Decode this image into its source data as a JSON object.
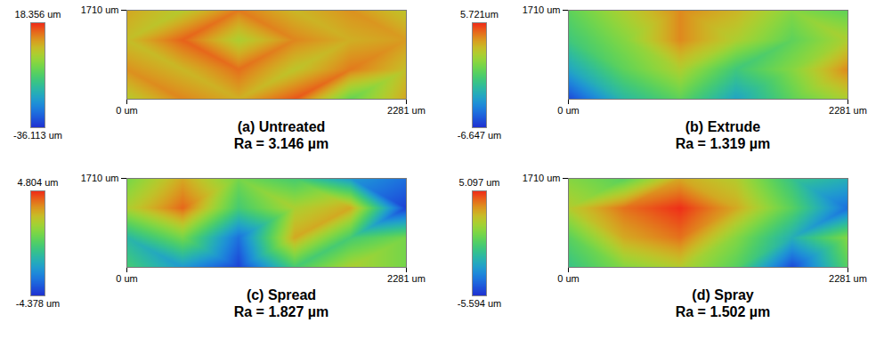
{
  "chart_data": [
    {
      "type": "heatmap",
      "title": "(a) Untreated",
      "subtitle": "Ra = 3.146 µm",
      "x": [
        0,
        456,
        912,
        1369,
        1825,
        2281
      ],
      "y": [
        1710,
        1140,
        570,
        0
      ],
      "z": [
        [
          8,
          3,
          12,
          6,
          10,
          4
        ],
        [
          5,
          14,
          2,
          11,
          7,
          9
        ],
        [
          10,
          6,
          13,
          4,
          12,
          5
        ],
        [
          3,
          11,
          7,
          15,
          -6,
          8
        ]
      ],
      "xlim": [
        0,
        2281
      ],
      "ylim": [
        0,
        1710
      ],
      "xticks": [
        {
          "value": 0,
          "label": "0 um"
        },
        {
          "value": 2281,
          "label": "2281 um"
        }
      ],
      "yticks": [
        {
          "value": 1710,
          "label": "1710 um"
        }
      ],
      "colorbar": {
        "range": [
          -36.113,
          18.356
        ],
        "ticks": [
          {
            "value": 18.356,
            "label": "18.356 um"
          },
          {
            "value": -36.113,
            "label": "-36.113 um"
          }
        ]
      }
    },
    {
      "type": "heatmap",
      "title": "(b) Extrude",
      "subtitle": "Ra = 1.319 µm",
      "x": [
        0,
        456,
        912,
        1369,
        1825,
        2281
      ],
      "y": [
        1710,
        1140,
        570,
        0
      ],
      "z": [
        [
          0,
          2,
          4,
          3,
          1,
          0
        ],
        [
          -1,
          1,
          4,
          2,
          0,
          2
        ],
        [
          -3,
          0,
          2,
          -1,
          1,
          4
        ],
        [
          -6,
          -2,
          0,
          -3,
          0,
          2
        ]
      ],
      "xlim": [
        0,
        2281
      ],
      "ylim": [
        0,
        1710
      ],
      "xticks": [
        {
          "value": 0,
          "label": "0 um"
        },
        {
          "value": 2281,
          "label": "2281 um"
        }
      ],
      "yticks": [
        {
          "value": 1710,
          "label": "1710 um"
        }
      ],
      "colorbar": {
        "range": [
          -6.647,
          5.721
        ],
        "ticks": [
          {
            "value": 5.721,
            "label": "5.721um"
          },
          {
            "value": -6.647,
            "label": "-6.647 um"
          }
        ]
      }
    },
    {
      "type": "heatmap",
      "title": "(c) Spread",
      "subtitle": "Ra = 1.827 µm",
      "x": [
        0,
        456,
        912,
        1369,
        1825,
        2281
      ],
      "y": [
        1710,
        1140,
        570,
        0
      ],
      "z": [
        [
          1,
          3,
          1,
          0,
          -2,
          -3
        ],
        [
          2,
          4,
          0,
          2,
          3,
          -4
        ],
        [
          -1,
          1,
          -3,
          3,
          0,
          1
        ],
        [
          0,
          -2,
          -4,
          0,
          2,
          1
        ]
      ],
      "xlim": [
        0,
        2281
      ],
      "ylim": [
        0,
        1710
      ],
      "xticks": [
        {
          "value": 0,
          "label": "0 um"
        },
        {
          "value": 2281,
          "label": "2281 um"
        }
      ],
      "yticks": [
        {
          "value": 1710,
          "label": "1710 um"
        }
      ],
      "colorbar": {
        "range": [
          -4.378,
          4.804
        ],
        "ticks": [
          {
            "value": 4.804,
            "label": "4.804 um"
          },
          {
            "value": -4.378,
            "label": "-4.378 um"
          }
        ]
      }
    },
    {
      "type": "heatmap",
      "title": "(d) Spray",
      "subtitle": "Ra = 1.502 µm",
      "x": [
        0,
        456,
        912,
        1369,
        1825,
        2281
      ],
      "y": [
        1710,
        1140,
        570,
        0
      ],
      "z": [
        [
          1,
          0,
          3,
          2,
          -1,
          -2
        ],
        [
          2,
          4,
          5,
          3,
          0,
          -4
        ],
        [
          0,
          3,
          4,
          1,
          -2,
          1
        ],
        [
          -1,
          1,
          2,
          0,
          -5,
          0
        ]
      ],
      "xlim": [
        0,
        2281
      ],
      "ylim": [
        0,
        1710
      ],
      "xticks": [
        {
          "value": 0,
          "label": "0 um"
        },
        {
          "value": 2281,
          "label": "2281 um"
        }
      ],
      "yticks": [
        {
          "value": 1710,
          "label": "1710 um"
        }
      ],
      "colorbar": {
        "range": [
          -5.594,
          5.097
        ],
        "ticks": [
          {
            "value": 5.097,
            "label": "5.097 um"
          },
          {
            "value": -5.594,
            "label": "-5.594 um"
          }
        ]
      }
    }
  ]
}
